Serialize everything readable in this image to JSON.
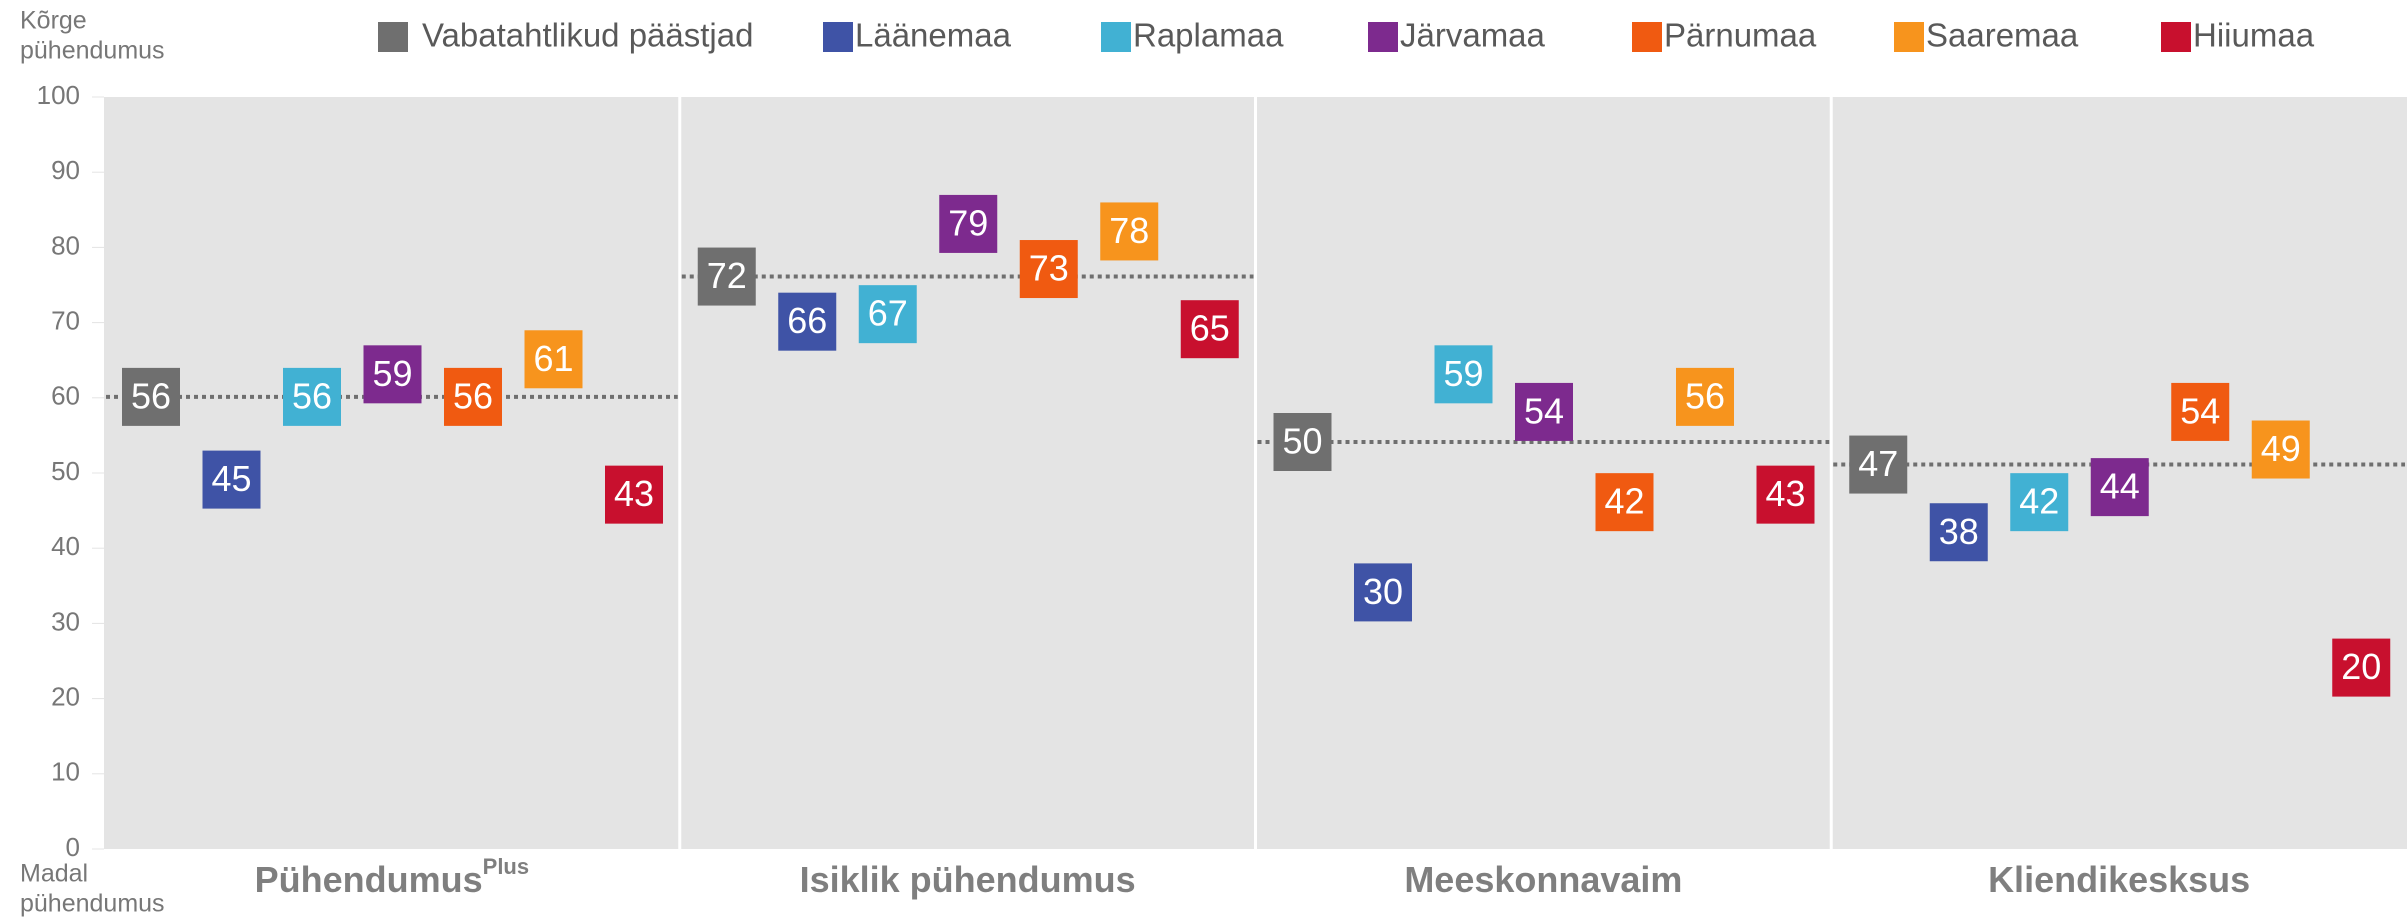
{
  "chart_data": {
    "type": "dot-panels",
    "y_top_label": [
      "Kõrge",
      "pühendumus"
    ],
    "y_bottom_label": [
      "Madal",
      "pühendumus"
    ],
    "categories": [
      "Pühendumus",
      "Isiklik pühendumus",
      "Meeskonnavaim",
      "Kliendikesksus"
    ],
    "first_category_superscript": "Plus",
    "ylim": [
      0,
      100
    ],
    "yticks": [
      0,
      10,
      20,
      30,
      40,
      50,
      60,
      70,
      80,
      90,
      100
    ],
    "reference_series": 0,
    "series": [
      {
        "name": "Vabatahtlikud päästjad",
        "color": "#6f6f6f",
        "values": [
          56,
          72,
          50,
          47
        ]
      },
      {
        "name": "Läänemaa",
        "color": "#3f53a6",
        "values": [
          45,
          66,
          30,
          38
        ]
      },
      {
        "name": "Raplamaa",
        "color": "#41b1d3",
        "values": [
          56,
          67,
          59,
          42
        ]
      },
      {
        "name": "Järvamaa",
        "color": "#7d2a8e",
        "values": [
          59,
          79,
          54,
          44
        ]
      },
      {
        "name": "Pärnumaa",
        "color": "#f05a11",
        "values": [
          56,
          73,
          42,
          54
        ]
      },
      {
        "name": "Saaremaa",
        "color": "#f7941d",
        "values": [
          61,
          78,
          56,
          49
        ]
      },
      {
        "name": "Hiiumaa",
        "color": "#c8102e",
        "values": [
          43,
          65,
          43,
          20
        ]
      }
    ]
  }
}
